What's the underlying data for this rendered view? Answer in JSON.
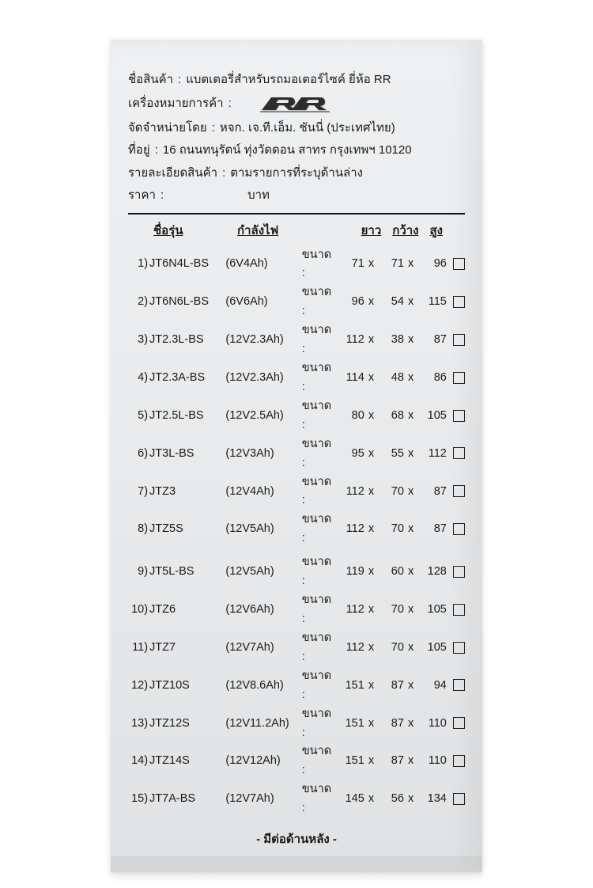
{
  "header": {
    "product_label": "ชื่อสินค้า",
    "product_value": "แบตเตอรี่สำหรับรถมอเตอร์ไซค์ ยี่ห้อ RR",
    "trademark_label": "เครื่องหมายการค้า",
    "distributor_label": "จัดจำหน่ายโดย",
    "distributor_value": "หจก. เจ.ที.เอ็ม. ชันนี่ (ประเทศไทย)",
    "address_label": "ที่อยู่",
    "address_value": "16 ถนนทนุรัตน์ ทุ่งวัดดอน สาทร กรุงเทพฯ 10120",
    "details_label": "รายละเอียดสินค้า",
    "details_value": "ตามรายการที่ระบุด้านล่าง",
    "price_label": "ราคา",
    "price_unit": "บาท"
  },
  "columns": {
    "model": "ชื่อรุ่น",
    "power": "กำลังไฟ",
    "length": "ยาว",
    "width": "กว้าง",
    "height": "สูง",
    "dim_prefix": "ขนาด :"
  },
  "rows": [
    {
      "idx": "1)",
      "model": "JT6N4L-BS",
      "power": "(6V4Ah)",
      "l": "71",
      "w": "71",
      "h": "96"
    },
    {
      "idx": "2)",
      "model": "JT6N6L-BS",
      "power": "(6V6Ah)",
      "l": "96",
      "w": "54",
      "h": "115"
    },
    {
      "idx": "3)",
      "model": "JT2.3L-BS",
      "power": "(12V2.3Ah)",
      "l": "112",
      "w": "38",
      "h": "87"
    },
    {
      "idx": "4)",
      "model": "JT2.3A-BS",
      "power": "(12V2.3Ah)",
      "l": "114",
      "w": "48",
      "h": "86"
    },
    {
      "idx": "5)",
      "model": "JT2.5L-BS",
      "power": "(12V2.5Ah)",
      "l": "80",
      "w": "68",
      "h": "105"
    },
    {
      "idx": "6)",
      "model": "JT3L-BS",
      "power": "(12V3Ah)",
      "l": "95",
      "w": "55",
      "h": "112"
    },
    {
      "idx": "7)",
      "model": "JTZ3",
      "power": "(12V4Ah)",
      "l": "112",
      "w": "70",
      "h": "87"
    },
    {
      "idx": "8)",
      "model": "JTZ5S",
      "power": "(12V5Ah)",
      "l": "112",
      "w": "70",
      "h": "87"
    },
    {
      "idx": "9)",
      "model": "JT5L-BS",
      "power": "(12V5Ah)",
      "l": "119",
      "w": "60",
      "h": "128"
    },
    {
      "idx": "10)",
      "model": "JTZ6",
      "power": "(12V6Ah)",
      "l": "112",
      "w": "70",
      "h": "105"
    },
    {
      "idx": "11)",
      "model": "JTZ7",
      "power": "(12V7Ah)",
      "l": "112",
      "w": "70",
      "h": "105"
    },
    {
      "idx": "12)",
      "model": "JTZ10S",
      "power": "(12V8.6Ah)",
      "l": "151",
      "w": "87",
      "h": "94"
    },
    {
      "idx": "13)",
      "model": "JTZ12S",
      "power": "(12V11.2Ah)",
      "l": "151",
      "w": "87",
      "h": "110"
    },
    {
      "idx": "14)",
      "model": "JTZ14S",
      "power": "(12V12Ah)",
      "l": "151",
      "w": "87",
      "h": "110"
    },
    {
      "idx": "15)",
      "model": "JT7A-BS",
      "power": "(12V7Ah)",
      "l": "145",
      "w": "56",
      "h": "134"
    }
  ],
  "footer": "- มีต่อด้านหลัง -",
  "style": {
    "bg": "#eceef0",
    "text": "#1a1a1a",
    "border": "#111111",
    "font_size_body": 15,
    "font_size_row": 14.5,
    "paper_width": 470,
    "gap_after_row": 8
  }
}
